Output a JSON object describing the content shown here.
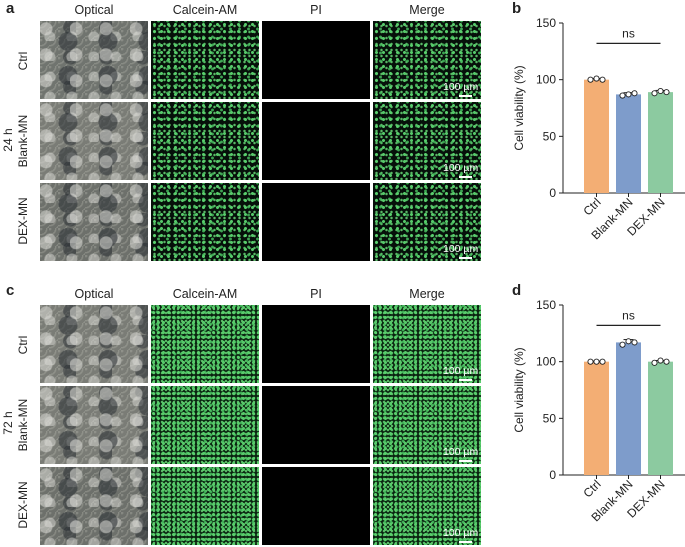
{
  "panels": {
    "a": "a",
    "b": "b",
    "c": "c",
    "d": "d"
  },
  "columns": [
    "Optical",
    "Calcein-AM",
    "PI",
    "Merge"
  ],
  "rows": [
    "Ctrl",
    "Blank-MN",
    "DEX-MN"
  ],
  "time_top": "24 h",
  "time_bottom": "72 h",
  "scalebar": "100 µm",
  "colors": {
    "ctrl": "#f3ae74",
    "blank": "#7e9ccb",
    "dex": "#8ccaa0",
    "fluorescence": "#5ad26e"
  },
  "chart_data": [
    {
      "type": "bar",
      "categories": [
        "Ctrl",
        "Blank-MN",
        "DEX-MN"
      ],
      "values": [
        100,
        87,
        89
      ],
      "points": [
        [
          100,
          101,
          100
        ],
        [
          86,
          87,
          88
        ],
        [
          88,
          90,
          89
        ]
      ],
      "errors": [
        1,
        1.5,
        1.5
      ],
      "ylabel": "Cell viability (%)",
      "ylim": [
        0,
        150
      ],
      "yticks": [
        "0",
        "50",
        "100",
        "150"
      ],
      "annotation": "ns"
    },
    {
      "type": "bar",
      "categories": [
        "Ctrl",
        "Blank-MN",
        "DEX-MN"
      ],
      "values": [
        100,
        117,
        100
      ],
      "points": [
        [
          100,
          100,
          100
        ],
        [
          115,
          118,
          117
        ],
        [
          99,
          101,
          100
        ]
      ],
      "errors": [
        0.5,
        2.5,
        1
      ],
      "ylabel": "Cell viability (%)",
      "ylim": [
        0,
        150
      ],
      "yticks": [
        "0",
        "50",
        "100",
        "150"
      ],
      "annotation": "ns"
    }
  ]
}
